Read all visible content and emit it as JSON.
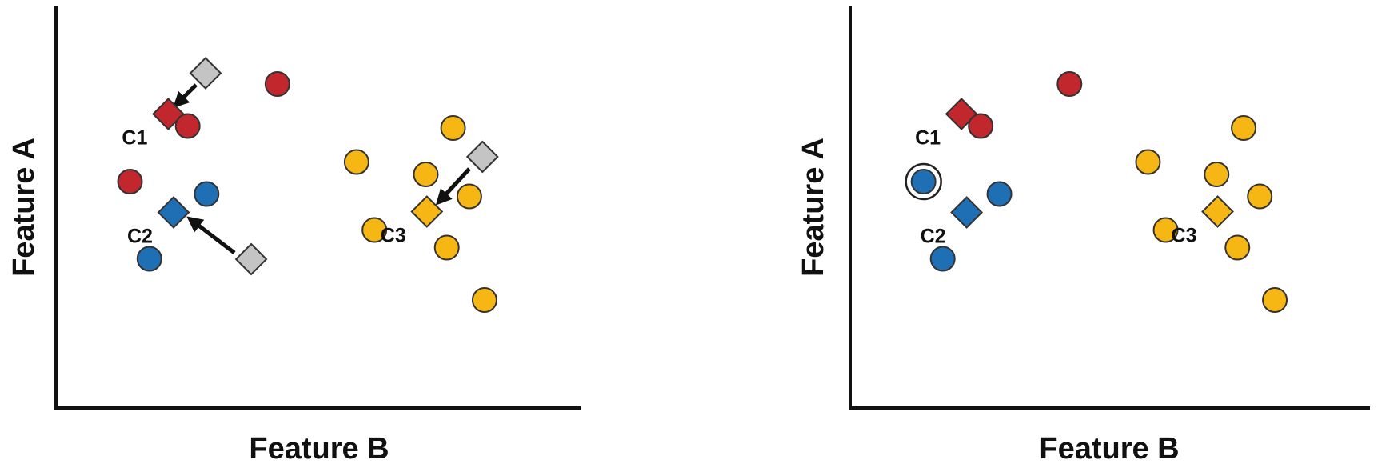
{
  "colors": {
    "red": "#c1272d",
    "blue": "#1f6fb5",
    "yellow": "#f6b714",
    "gray": "#c4c4c4",
    "outline": "#333333",
    "axis": "#111111"
  },
  "chart_data": [
    {
      "type": "scatter",
      "xlabel": "Feature B",
      "ylabel": "Feature A",
      "xlim": [
        0,
        100
      ],
      "ylim": [
        0,
        100
      ],
      "grid": false,
      "legend": "none",
      "points": [
        {
          "x": 42.2,
          "y": 81.0,
          "color": "red"
        },
        {
          "x": 25.1,
          "y": 70.5,
          "color": "red"
        },
        {
          "x": 14.1,
          "y": 56.6,
          "color": "red"
        },
        {
          "x": 28.7,
          "y": 53.5,
          "color": "blue"
        },
        {
          "x": 17.8,
          "y": 37.3,
          "color": "blue"
        },
        {
          "x": 75.7,
          "y": 70.0,
          "color": "yellow"
        },
        {
          "x": 57.3,
          "y": 61.5,
          "color": "yellow"
        },
        {
          "x": 70.5,
          "y": 58.4,
          "color": "yellow"
        },
        {
          "x": 78.8,
          "y": 52.9,
          "color": "yellow"
        },
        {
          "x": 60.7,
          "y": 44.5,
          "color": "yellow"
        },
        {
          "x": 74.5,
          "y": 40.1,
          "color": "yellow"
        },
        {
          "x": 81.7,
          "y": 27.0,
          "color": "yellow"
        }
      ],
      "old_centroids": [
        {
          "x": 28.5,
          "y": 83.7
        },
        {
          "x": 37.2,
          "y": 37.2
        },
        {
          "x": 81.3,
          "y": 62.8
        }
      ],
      "centroids": [
        {
          "label": "C1",
          "x": 21.4,
          "y": 73.5,
          "color": "red"
        },
        {
          "label": "C2",
          "x": 22.4,
          "y": 48.9,
          "color": "blue"
        },
        {
          "label": "C3",
          "x": 70.7,
          "y": 49.1,
          "color": "yellow"
        }
      ],
      "arrows": [
        {
          "from": [
            26.7,
            80.8
          ],
          "to": [
            22.8,
            75.7
          ]
        },
        {
          "from": [
            34.0,
            38.8
          ],
          "to": [
            25.5,
            47.3
          ]
        },
        {
          "from": [
            78.8,
            59.8
          ],
          "to": [
            72.9,
            51.4
          ]
        }
      ]
    },
    {
      "type": "scatter",
      "xlabel": "Feature B",
      "ylabel": "Feature A",
      "xlim": [
        0,
        100
      ],
      "ylim": [
        0,
        100
      ],
      "grid": false,
      "legend": "none",
      "points": [
        {
          "x": 42.2,
          "y": 81.0,
          "color": "red"
        },
        {
          "x": 25.1,
          "y": 70.5,
          "color": "red"
        },
        {
          "x": 14.1,
          "y": 56.6,
          "color": "blue",
          "highlighted": true
        },
        {
          "x": 28.7,
          "y": 53.5,
          "color": "blue"
        },
        {
          "x": 17.8,
          "y": 37.3,
          "color": "blue"
        },
        {
          "x": 75.7,
          "y": 70.0,
          "color": "yellow"
        },
        {
          "x": 57.3,
          "y": 61.5,
          "color": "yellow"
        },
        {
          "x": 70.5,
          "y": 58.4,
          "color": "yellow"
        },
        {
          "x": 78.8,
          "y": 52.9,
          "color": "yellow"
        },
        {
          "x": 60.7,
          "y": 44.5,
          "color": "yellow"
        },
        {
          "x": 74.5,
          "y": 40.1,
          "color": "yellow"
        },
        {
          "x": 81.7,
          "y": 27.0,
          "color": "yellow"
        }
      ],
      "old_centroids": [],
      "centroids": [
        {
          "label": "C1",
          "x": 21.4,
          "y": 73.5,
          "color": "red"
        },
        {
          "label": "C2",
          "x": 22.4,
          "y": 48.9,
          "color": "blue"
        },
        {
          "label": "C3",
          "x": 70.7,
          "y": 49.1,
          "color": "yellow"
        }
      ],
      "arrows": []
    }
  ]
}
